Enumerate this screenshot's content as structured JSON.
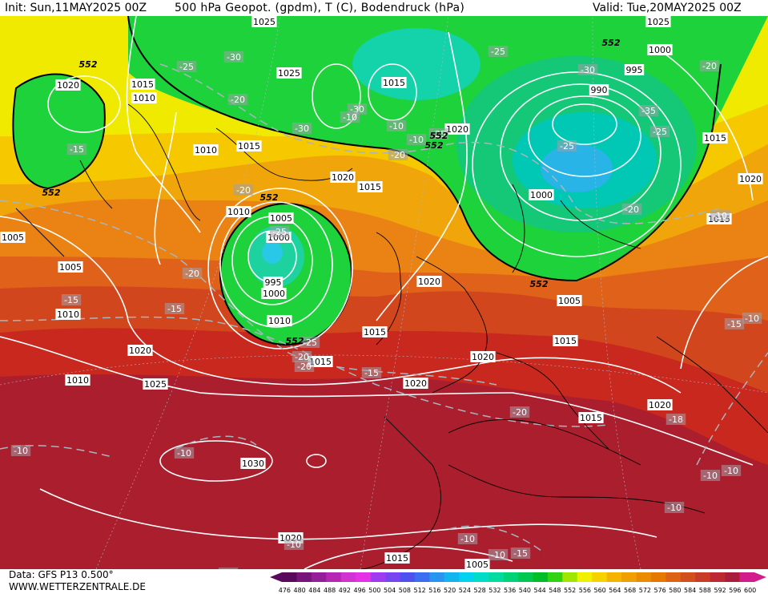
{
  "header": {
    "init": "Init: Sun,11MAY2025 00Z",
    "title": "500 hPa Geopot. (gpdm), T (C), Bodendruck (hPa)",
    "valid": "Valid: Tue,20MAY2025 00Z"
  },
  "footer": {
    "data_source": "Data: GFS P13 0.500°",
    "site": "WWW.WETTERZENTRALE.DE"
  },
  "scale": {
    "values": [
      "476",
      "480",
      "484",
      "488",
      "492",
      "496",
      "500",
      "504",
      "508",
      "512",
      "516",
      "520",
      "524",
      "528",
      "532",
      "536",
      "540",
      "544",
      "548",
      "552",
      "556",
      "560",
      "564",
      "568",
      "572",
      "576",
      "580",
      "584",
      "588",
      "592",
      "596",
      "600"
    ],
    "colors": [
      "#5a0a5a",
      "#78147a",
      "#961e9a",
      "#b428b4",
      "#d232d2",
      "#e632e6",
      "#a03cf0",
      "#7846f0",
      "#5050f0",
      "#3c6ef0",
      "#2896f0",
      "#14b4f0",
      "#00d2f0",
      "#00dcc8",
      "#00dca0",
      "#00d278",
      "#00c850",
      "#00be28",
      "#32d214",
      "#a0e600",
      "#f0f000",
      "#f5d200",
      "#f5b400",
      "#f0a000",
      "#eb8c00",
      "#e67800",
      "#dc6414",
      "#d2501e",
      "#c83c28",
      "#be2832",
      "#aa1e3c",
      "#d21e8c"
    ]
  },
  "map": {
    "pressure_labels": [
      "1025",
      "1015",
      "1020",
      "1010",
      "1025",
      "1015",
      "1015",
      "1010",
      "1020",
      "1000",
      "1005",
      "1010",
      "1020",
      "1015",
      "1025",
      "1020",
      "1015",
      "1005",
      "995",
      "1000",
      "1010",
      "1020",
      "1015",
      "1010",
      "1020",
      "1015",
      "1020",
      "1030",
      "1025",
      "1020",
      "1015",
      "1005",
      "1000",
      "990",
      "995",
      "1000",
      "1015",
      "1020",
      "1015",
      "1020",
      "1015",
      "1005",
      "1010",
      "1005"
    ],
    "temperature_labels": [
      "-25",
      "-30",
      "-20",
      "-30",
      "-25",
      "-30",
      "-25",
      "-20",
      "-20",
      "-25",
      "-20",
      "-15",
      "-15",
      "-20",
      "-25",
      "-20",
      "-15",
      "-20",
      "-30",
      "-35",
      "-25",
      "-25",
      "-20",
      "-20",
      "-10",
      "-10",
      "-15",
      "-15",
      "-10",
      "-10",
      "-10",
      "-10",
      "-10",
      "-10",
      "-10",
      "-10",
      "-10",
      "-15",
      "-10",
      "-10",
      "-18",
      "-10"
    ],
    "geopotential_labels": [
      "552",
      "552",
      "552",
      "552",
      "552",
      "552",
      "552",
      "552"
    ]
  }
}
